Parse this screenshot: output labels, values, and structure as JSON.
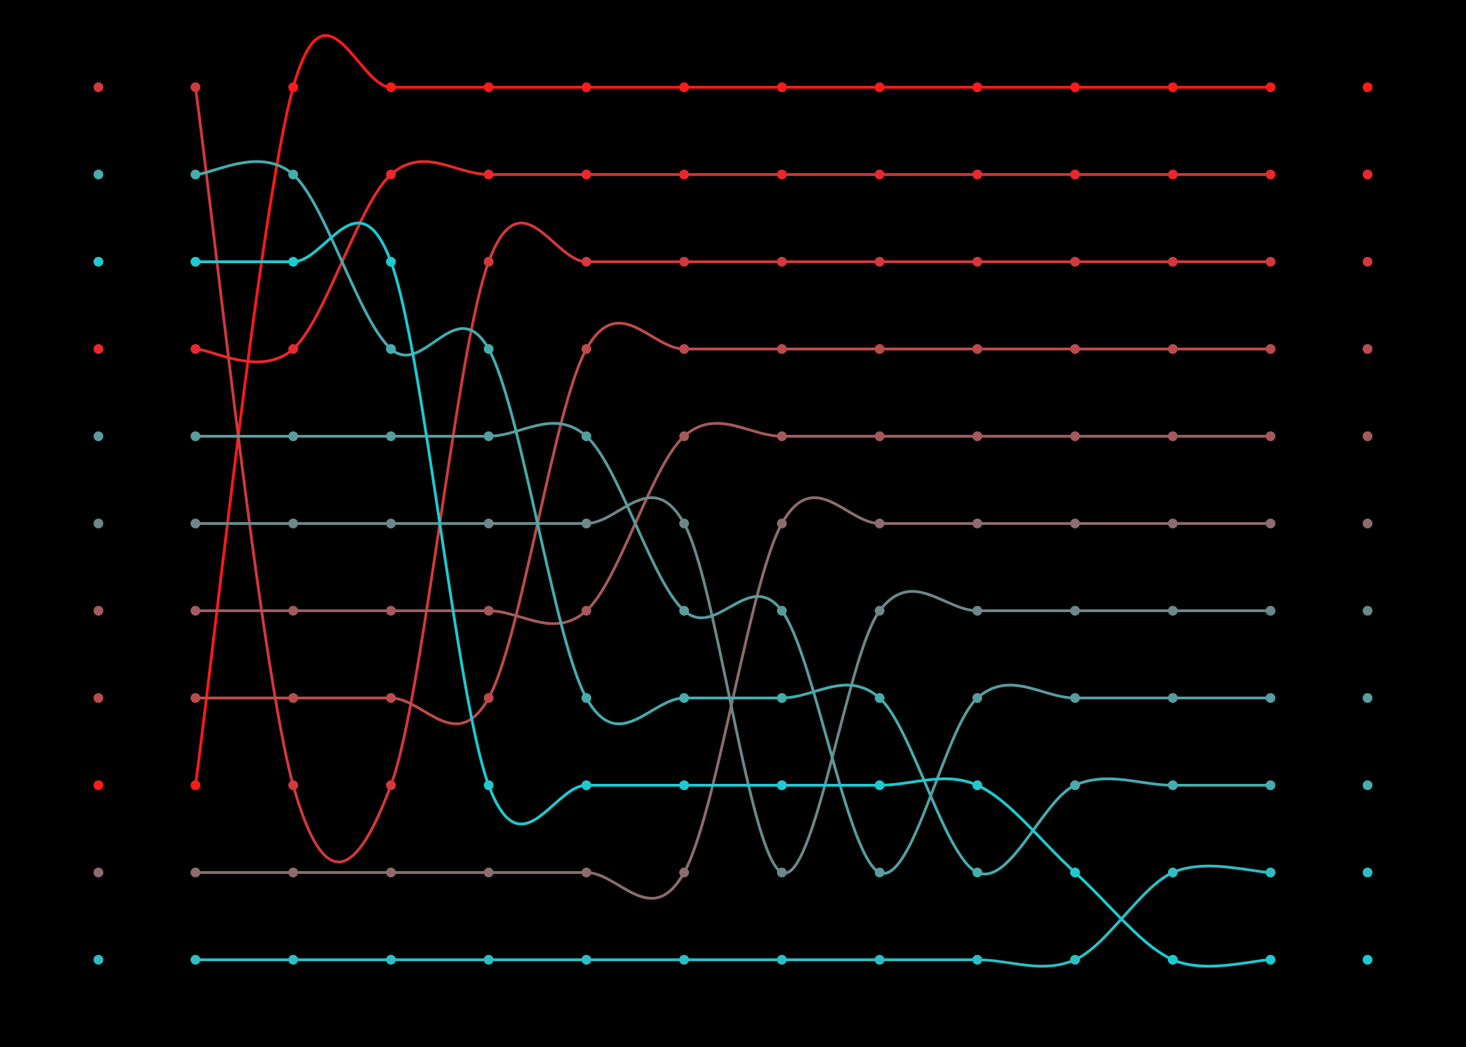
{
  "chart_data": {
    "type": "bump",
    "background": "#000000",
    "ylim": [
      10,
      0
    ],
    "line_width": 4,
    "marker_radius": 7,
    "series": [
      {
        "color": "#ff1a1a",
        "values": [
          8,
          0,
          0,
          0,
          0,
          0,
          0,
          0,
          0,
          0,
          0,
          0
        ]
      },
      {
        "color": "#e8282c",
        "values": [
          3,
          3,
          1,
          1,
          1,
          1,
          1,
          1,
          1,
          1,
          1,
          1
        ]
      },
      {
        "color": "#d2383c",
        "values": [
          0,
          8,
          8,
          2,
          2,
          2,
          2,
          2,
          2,
          2,
          2,
          2
        ]
      },
      {
        "color": "#bc4a4c",
        "values": [
          7,
          7,
          7,
          7,
          3,
          3,
          3,
          3,
          3,
          3,
          3,
          3
        ]
      },
      {
        "color": "#a45a5c",
        "values": [
          6,
          6,
          6,
          6,
          6,
          4,
          4,
          4,
          4,
          4,
          4,
          4
        ]
      },
      {
        "color": "#8c6c6e",
        "values": [
          9,
          9,
          9,
          9,
          9,
          9,
          5,
          5,
          5,
          5,
          5,
          5
        ]
      },
      {
        "color": "#6c8888",
        "values": [
          5,
          5,
          5,
          5,
          5,
          5,
          9,
          6,
          6,
          6,
          6,
          6
        ]
      },
      {
        "color": "#589c9e",
        "values": [
          4,
          4,
          4,
          4,
          4,
          6,
          6,
          9,
          7,
          7,
          7,
          7
        ]
      },
      {
        "color": "#46acae",
        "values": [
          1,
          1,
          3,
          3,
          7,
          7,
          7,
          7,
          9,
          8,
          8,
          8
        ]
      },
      {
        "color": "#1ecad0",
        "values": [
          2,
          2,
          2,
          8,
          8,
          8,
          8,
          8,
          8,
          9,
          10,
          10
        ]
      },
      {
        "color": "#2cbec4",
        "values": [
          10,
          10,
          10,
          10,
          10,
          10,
          10,
          10,
          10,
          10,
          9,
          9
        ]
      }
    ]
  }
}
